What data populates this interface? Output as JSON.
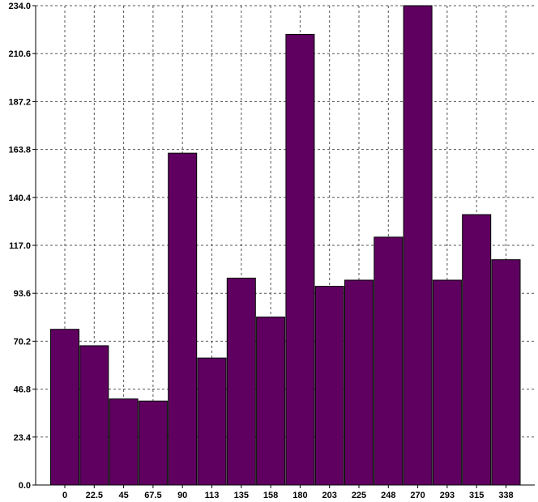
{
  "chart_data": {
    "type": "bar",
    "title": "",
    "xlabel": "",
    "ylabel": "",
    "ylim": [
      0,
      234
    ],
    "grid": true,
    "legend": "none",
    "bar_color": "#5f0060",
    "categories": [
      "0",
      "22.5",
      "45",
      "67.5",
      "90",
      "113",
      "135",
      "158",
      "180",
      "203",
      "225",
      "248",
      "270",
      "293",
      "315",
      "338"
    ],
    "values": [
      76,
      68,
      42,
      41,
      162,
      62,
      101,
      82,
      220,
      97,
      100,
      121,
      234,
      100,
      132,
      110
    ],
    "y_ticks": [
      "0.0",
      "23.4",
      "46.8",
      "70.2",
      "93.6",
      "117.0",
      "140.4",
      "163.8",
      "187.2",
      "210.6",
      "234.0"
    ]
  }
}
